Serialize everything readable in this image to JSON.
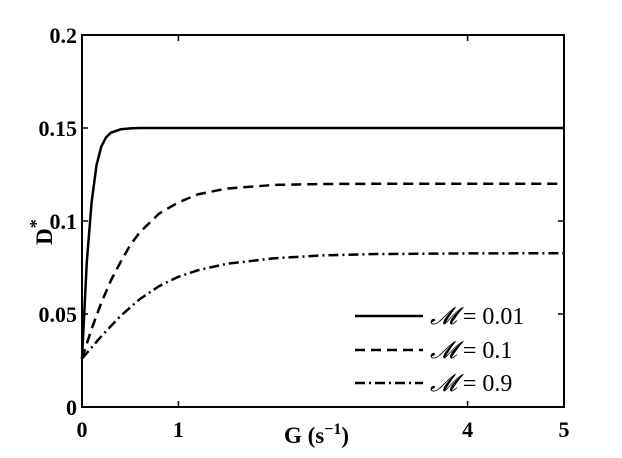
{
  "chart_data": {
    "type": "line",
    "title": "",
    "xlabel": "G (s",
    "xlabel_sup": "−1",
    "xlabel_close": ")",
    "ylabel": "D",
    "ylabel_sup": "*",
    "xlim": [
      0,
      5
    ],
    "ylim": [
      0,
      0.2
    ],
    "xticks": [
      0,
      1,
      4,
      5
    ],
    "xtick_labels": [
      "0",
      "1",
      "4",
      "5"
    ],
    "yticks": [
      0,
      0.05,
      0.1,
      0.15,
      0.2
    ],
    "ytick_labels": [
      "0",
      "0.05",
      "0.1",
      "0.15",
      "0.2"
    ],
    "grid": false,
    "legend_position": "bottom-right",
    "series": [
      {
        "name": "𝓜 = 0.01",
        "legend_symbol": "𝓜",
        "legend_value": "= 0.01",
        "style": "solid",
        "color": "#000000",
        "x": [
          0,
          0.05,
          0.1,
          0.15,
          0.2,
          0.25,
          0.3,
          0.4,
          0.5,
          0.6,
          0.8,
          1,
          2,
          3,
          4,
          5
        ],
        "y": [
          0.026,
          0.078,
          0.11,
          0.13,
          0.14,
          0.145,
          0.1475,
          0.1493,
          0.1498,
          0.15,
          0.15,
          0.15,
          0.15,
          0.15,
          0.15,
          0.15
        ]
      },
      {
        "name": "𝓜 = 0.1",
        "legend_symbol": "𝓜",
        "legend_value": "= 0.1",
        "style": "dashed",
        "color": "#000000",
        "x": [
          0,
          0.1,
          0.2,
          0.3,
          0.4,
          0.5,
          0.6,
          0.8,
          1,
          1.2,
          1.5,
          2,
          2.5,
          3,
          4,
          5
        ],
        "y": [
          0.026,
          0.042,
          0.056,
          0.068,
          0.078,
          0.087,
          0.094,
          0.104,
          0.11,
          0.1143,
          0.1175,
          0.1194,
          0.1199,
          0.12,
          0.12,
          0.12
        ]
      },
      {
        "name": "𝓜 = 0.9",
        "legend_symbol": "𝓜",
        "legend_value": "= 0.9",
        "style": "dashdot",
        "color": "#000000",
        "x": [
          0,
          0.2,
          0.4,
          0.6,
          0.8,
          1,
          1.2,
          1.5,
          2,
          2.5,
          3,
          4,
          5
        ],
        "y": [
          0.026,
          0.038,
          0.049,
          0.058,
          0.065,
          0.07,
          0.0735,
          0.077,
          0.08,
          0.0815,
          0.0822,
          0.0826,
          0.0827
        ]
      }
    ]
  }
}
